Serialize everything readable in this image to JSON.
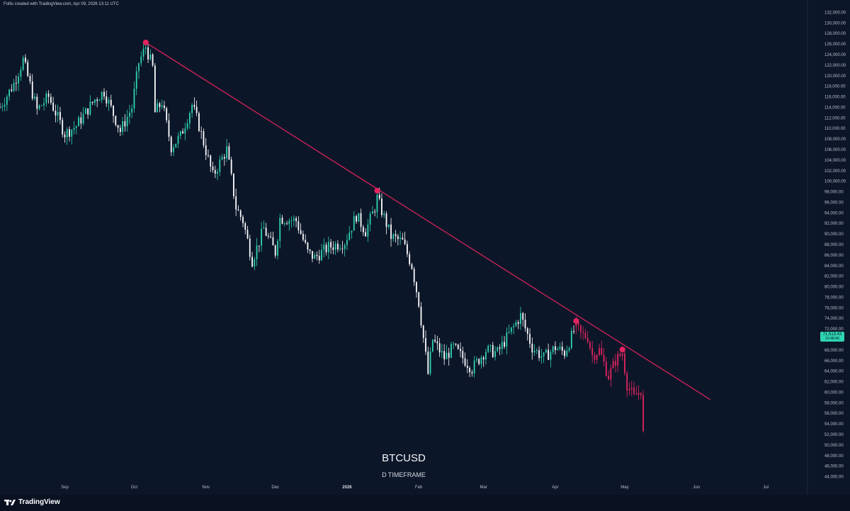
{
  "header": {
    "attribution": "Follis created with TradingView.com, Apr 09, 2026 13:11 UTC"
  },
  "watermark": {
    "symbol": "BTCUSD",
    "timeframe": "D TIMEFRAME"
  },
  "footer": {
    "logo_text": "TradingView"
  },
  "current_price": {
    "value": "71,513.43",
    "countdown": "10:48:46"
  },
  "colors": {
    "background": "#0c1629",
    "bull": "#2fd4b1",
    "bear": "#ffffff",
    "projection": "#e5245f",
    "trendline": "#e5245f"
  },
  "chart_data": {
    "type": "candlestick",
    "title": "BTCUSD",
    "subtitle": "D TIMEFRAME",
    "ylim": [
      43000,
      133000
    ],
    "y_ticks": [
      44000,
      46000,
      48000,
      50000,
      52000,
      54000,
      56000,
      58000,
      60000,
      62000,
      64000,
      66000,
      68000,
      70000,
      72000,
      74000,
      76000,
      78000,
      80000,
      82000,
      84000,
      86000,
      88000,
      90000,
      92000,
      94000,
      96000,
      98000,
      100000,
      102000,
      104000,
      106000,
      108000,
      110000,
      112000,
      114000,
      116000,
      118000,
      120000,
      122000,
      124000,
      126000,
      128000,
      130000,
      132000
    ],
    "x_ticks": [
      {
        "label": "Sep",
        "bold": false
      },
      {
        "label": "Oct",
        "bold": false
      },
      {
        "label": "Nov",
        "bold": false
      },
      {
        "label": "Dec",
        "bold": false
      },
      {
        "label": "2026",
        "bold": true
      },
      {
        "label": "Feb",
        "bold": false
      },
      {
        "label": "Mar",
        "bold": false
      },
      {
        "label": "Apr",
        "bold": false
      },
      {
        "label": "May",
        "bold": false
      },
      {
        "label": "Jun",
        "bold": false
      },
      {
        "label": "Jul",
        "bold": false
      }
    ],
    "x_range": [
      "2025-08-04",
      "2026-07-19"
    ],
    "price_path": [
      {
        "date": "2025-08-04",
        "price": 114000
      },
      {
        "date": "2025-08-10",
        "price": 118500
      },
      {
        "date": "2025-08-14",
        "price": 123000
      },
      {
        "date": "2025-08-20",
        "price": 113500
      },
      {
        "date": "2025-08-25",
        "price": 116000
      },
      {
        "date": "2025-09-01",
        "price": 109000
      },
      {
        "date": "2025-09-06",
        "price": 110500
      },
      {
        "date": "2025-09-14",
        "price": 115500
      },
      {
        "date": "2025-09-18",
        "price": 117000
      },
      {
        "date": "2025-09-25",
        "price": 109500
      },
      {
        "date": "2025-09-30",
        "price": 114000
      },
      {
        "date": "2025-10-03",
        "price": 122500
      },
      {
        "date": "2025-10-06",
        "price": 125500
      },
      {
        "date": "2025-10-09",
        "price": 121500
      },
      {
        "date": "2025-10-10",
        "price": 113000
      },
      {
        "date": "2025-10-13",
        "price": 115000
      },
      {
        "date": "2025-10-17",
        "price": 106500
      },
      {
        "date": "2025-10-21",
        "price": 108500
      },
      {
        "date": "2025-10-26",
        "price": 114500
      },
      {
        "date": "2025-10-29",
        "price": 110500
      },
      {
        "date": "2025-11-04",
        "price": 101000
      },
      {
        "date": "2025-11-10",
        "price": 106000
      },
      {
        "date": "2025-11-14",
        "price": 95000
      },
      {
        "date": "2025-11-17",
        "price": 92500
      },
      {
        "date": "2025-11-21",
        "price": 85000
      },
      {
        "date": "2025-11-26",
        "price": 91000
      },
      {
        "date": "2025-12-01",
        "price": 86500
      },
      {
        "date": "2025-12-03",
        "price": 93000
      },
      {
        "date": "2025-12-10",
        "price": 92500
      },
      {
        "date": "2025-12-15",
        "price": 86500
      },
      {
        "date": "2025-12-18",
        "price": 85500
      },
      {
        "date": "2025-12-24",
        "price": 87500
      },
      {
        "date": "2025-12-31",
        "price": 88500
      },
      {
        "date": "2026-01-05",
        "price": 93500
      },
      {
        "date": "2026-01-09",
        "price": 90500
      },
      {
        "date": "2026-01-13",
        "price": 95000
      },
      {
        "date": "2026-01-14",
        "price": 96800
      },
      {
        "date": "2026-01-20",
        "price": 89500
      },
      {
        "date": "2026-01-25",
        "price": 88500
      },
      {
        "date": "2026-01-29",
        "price": 84000
      },
      {
        "date": "2026-02-01",
        "price": 77000
      },
      {
        "date": "2026-02-05",
        "price": 63500
      },
      {
        "date": "2026-02-07",
        "price": 70000
      },
      {
        "date": "2026-02-12",
        "price": 66500
      },
      {
        "date": "2026-02-16",
        "price": 68500
      },
      {
        "date": "2026-02-24",
        "price": 64500
      },
      {
        "date": "2026-03-02",
        "price": 68000
      },
      {
        "date": "2026-03-07",
        "price": 67500
      },
      {
        "date": "2026-03-12",
        "price": 71000
      },
      {
        "date": "2026-03-17",
        "price": 74500
      },
      {
        "date": "2026-03-22",
        "price": 68500
      },
      {
        "date": "2026-03-27",
        "price": 66500
      },
      {
        "date": "2026-04-01",
        "price": 68500
      },
      {
        "date": "2026-04-05",
        "price": 67500
      },
      {
        "date": "2026-04-09",
        "price": 71500
      }
    ],
    "projection": [
      {
        "date": "2026-04-10",
        "price": 72500
      },
      {
        "date": "2026-04-12",
        "price": 71000
      },
      {
        "date": "2026-04-15",
        "price": 70500
      },
      {
        "date": "2026-04-17",
        "price": 67000
      },
      {
        "date": "2026-04-20",
        "price": 68000
      },
      {
        "date": "2026-04-24",
        "price": 63000
      },
      {
        "date": "2026-04-27",
        "price": 66000
      },
      {
        "date": "2026-04-30",
        "price": 67500
      },
      {
        "date": "2026-05-02",
        "price": 61500
      },
      {
        "date": "2026-05-05",
        "price": 59000
      },
      {
        "date": "2026-05-08",
        "price": 60500
      },
      {
        "date": "2026-05-09",
        "price": 52000
      }
    ],
    "trendline": {
      "start": {
        "date": "2025-10-06",
        "price": 126300
      },
      "end": {
        "date": "2026-06-07",
        "price": 58600
      }
    },
    "touch_points": [
      {
        "date": "2025-10-06",
        "price": 126300
      },
      {
        "date": "2026-01-14",
        "price": 98200
      },
      {
        "date": "2026-04-10",
        "price": 73500
      },
      {
        "date": "2026-04-30",
        "price": 68100
      }
    ]
  }
}
